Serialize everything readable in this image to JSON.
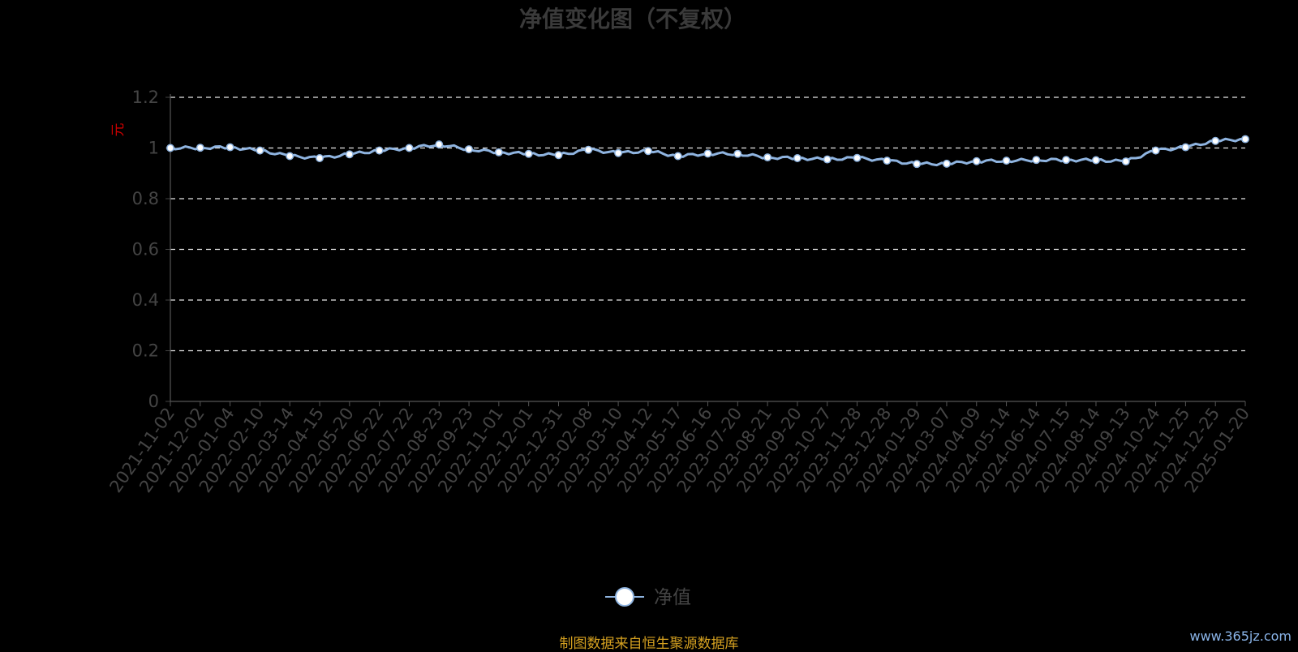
{
  "chart_data": {
    "type": "line",
    "title": "净值变化图（不复权）",
    "ylabel": "元",
    "ylim": [
      0,
      1.2
    ],
    "yticks": [
      "0",
      "0.2",
      "0.4",
      "0.6",
      "0.8",
      "1",
      "1.2"
    ],
    "grid": true,
    "legend_position": "bottom-center",
    "line_color": "#8fb4e0",
    "x": [
      "2021-11-02",
      "2021-12-02",
      "2022-01-04",
      "2022-02-10",
      "2022-03-14",
      "2022-04-15",
      "2022-05-20",
      "2022-06-22",
      "2022-07-22",
      "2022-08-23",
      "2022-09-23",
      "2022-11-01",
      "2022-12-01",
      "2022-12-31",
      "2023-02-08",
      "2023-03-10",
      "2023-04-12",
      "2023-05-17",
      "2023-06-16",
      "2023-07-20",
      "2023-08-21",
      "2023-09-20",
      "2023-10-27",
      "2023-11-28",
      "2023-12-28",
      "2024-01-29",
      "2024-03-07",
      "2024-04-09",
      "2024-05-14",
      "2024-06-14",
      "2024-07-15",
      "2024-08-14",
      "2024-09-13",
      "2024-10-24",
      "2024-11-25",
      "2024-12-25",
      "2025-01-20"
    ],
    "series": [
      {
        "name": "净值",
        "values": [
          1.0,
          1.001,
          1.003,
          0.99,
          0.968,
          0.96,
          0.975,
          0.99,
          1.0,
          1.014,
          0.995,
          0.983,
          0.977,
          0.972,
          0.993,
          0.98,
          0.988,
          0.968,
          0.978,
          0.977,
          0.963,
          0.96,
          0.955,
          0.961,
          0.95,
          0.937,
          0.938,
          0.948,
          0.95,
          0.953,
          0.953,
          0.952,
          0.947,
          0.99,
          1.003,
          1.028,
          1.035
        ]
      }
    ]
  },
  "footer": "制图数据来自恒生聚源数据库",
  "watermark": "www.365jz.com"
}
